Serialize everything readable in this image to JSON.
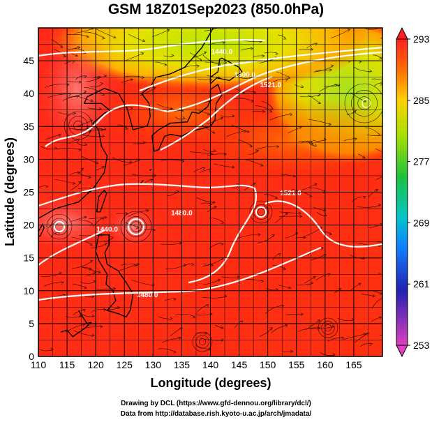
{
  "title": "GSM 18Z01Sep2023 (850.0hPa)",
  "xlabel": "Longitude (degrees)",
  "ylabel": "Latitude (degrees)",
  "credit_line1": "Drawing by DCL (https://www.gfd-dennou.org/library/dcl/)",
  "credit_line2": "Data from http://database.rish.kyoto-u.ac.jp/arch/jmadata/",
  "chart_data": {
    "type": "map",
    "x_ticks": [
      110,
      115,
      120,
      125,
      130,
      135,
      140,
      145,
      150,
      155,
      160,
      165
    ],
    "y_ticks": [
      0,
      5,
      10,
      15,
      20,
      25,
      30,
      35,
      40,
      45
    ],
    "xlim": [
      110,
      170
    ],
    "ylim": [
      0,
      50
    ],
    "grid": true,
    "colorbar": {
      "ticks": [
        293,
        285,
        277,
        269,
        261,
        253
      ],
      "range": [
        253,
        293
      ],
      "colors": [
        "#e040c0",
        "#2020b0",
        "#1080ff",
        "#00c8c8",
        "#20c040",
        "#a0e000",
        "#ffd000",
        "#ff8000",
        "#ff2020"
      ]
    },
    "contour_labels": [
      {
        "text": "1440.0",
        "lon": 142,
        "lat": 46
      },
      {
        "text": "1500.0",
        "lon": 146,
        "lat": 42.5
      },
      {
        "text": "1521.0",
        "lon": 150.5,
        "lat": 41
      },
      {
        "text": "1480.0",
        "lon": 135,
        "lat": 21.5
      },
      {
        "text": "1521.0",
        "lon": 154,
        "lat": 24.5
      },
      {
        "text": "1440.0",
        "lon": 122,
        "lat": 19
      },
      {
        "text": "1480.0",
        "lon": 129,
        "lat": 9
      }
    ]
  }
}
